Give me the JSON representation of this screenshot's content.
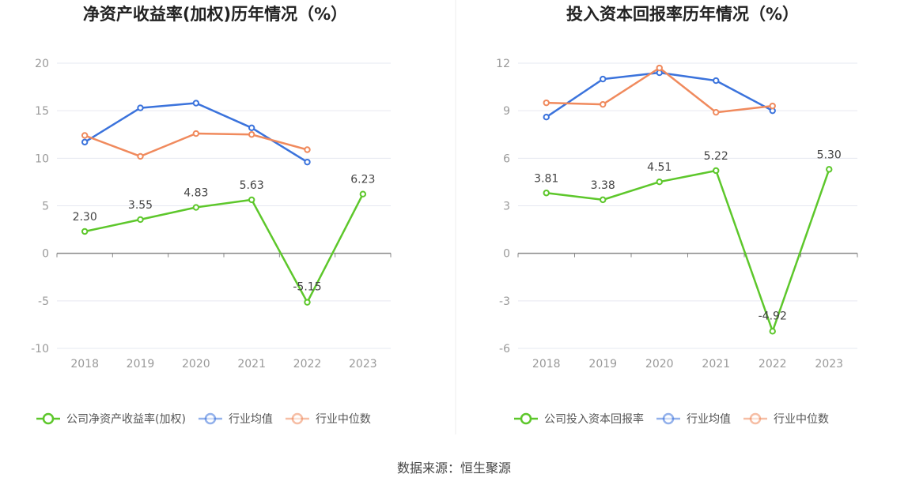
{
  "colors": {
    "company": "#5dc72b",
    "industry_avg": "#3b73dc",
    "industry_median": "#f08a5d",
    "grid": "#e6e8f0",
    "zero_axis": "#888888",
    "tick_text": "#999999"
  },
  "source_text": "数据来源：恒生聚源",
  "chart_data": [
    {
      "type": "line",
      "title": "净资产收益率(加权)历年情况（%）",
      "categories": [
        "2018",
        "2019",
        "2020",
        "2021",
        "2022",
        "2023"
      ],
      "ylim": [
        -10,
        20
      ],
      "yticks": [
        20,
        15,
        10,
        5,
        0,
        -5,
        -10
      ],
      "ytick_labels": [
        "20",
        "15",
        "10",
        "5",
        "0",
        "-5",
        "-10"
      ],
      "series": [
        {
          "name": "公司净资产收益率(加权)",
          "key": "company",
          "values": [
            2.3,
            3.55,
            4.83,
            5.63,
            -5.15,
            6.23
          ],
          "labels": [
            "2.30",
            "3.55",
            "4.83",
            "5.63",
            "-5.15",
            "6.23"
          ]
        },
        {
          "name": "行业均值",
          "key": "industry_avg",
          "values": [
            11.7,
            15.3,
            15.8,
            13.2,
            9.6,
            null
          ]
        },
        {
          "name": "行业中位数",
          "key": "industry_median",
          "values": [
            12.4,
            10.2,
            12.6,
            12.5,
            10.9,
            null
          ]
        }
      ]
    },
    {
      "type": "line",
      "title": "投入资本回报率历年情况（%）",
      "categories": [
        "2018",
        "2019",
        "2020",
        "2021",
        "2022",
        "2023"
      ],
      "ylim": [
        -6,
        12
      ],
      "yticks": [
        12,
        9,
        6,
        3,
        0,
        -3,
        -6
      ],
      "ytick_labels": [
        "12",
        "9",
        "6",
        "3",
        "0",
        "-3",
        "-6"
      ],
      "series": [
        {
          "name": "公司投入资本回报率",
          "key": "company",
          "values": [
            3.81,
            3.38,
            4.51,
            5.22,
            -4.92,
            5.3
          ],
          "labels": [
            "3.81",
            "3.38",
            "4.51",
            "5.22",
            "-4.92",
            "5.30"
          ]
        },
        {
          "name": "行业均值",
          "key": "industry_avg",
          "values": [
            8.6,
            11.0,
            11.4,
            10.9,
            9.0,
            null
          ]
        },
        {
          "name": "行业中位数",
          "key": "industry_median",
          "values": [
            9.5,
            9.4,
            11.7,
            8.9,
            9.3,
            null
          ]
        }
      ]
    }
  ]
}
